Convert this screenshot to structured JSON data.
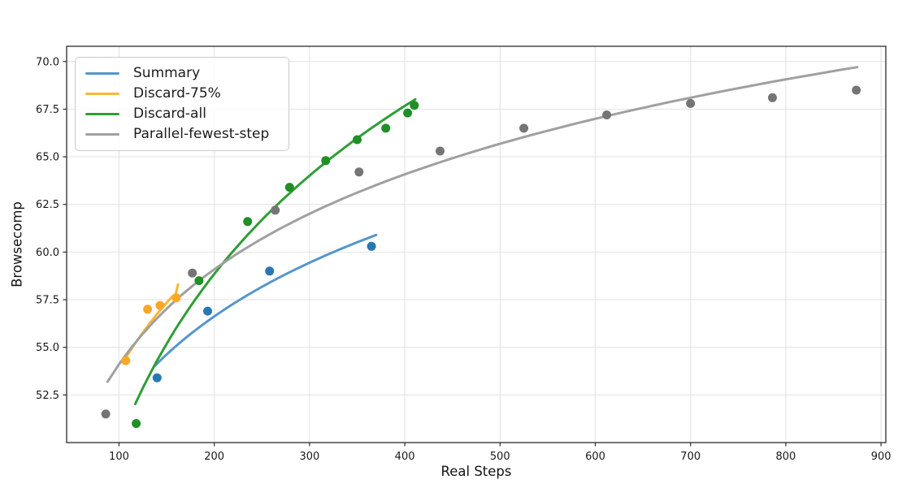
{
  "figure": {
    "background": "#ffffff",
    "grid_color": "#e2e2e2",
    "spine_color": "#2b2b2b",
    "tick_color": "#2b2b2b",
    "tick_label_color": "#1a1a1a"
  },
  "chart_data": {
    "type": "scatter",
    "title": "",
    "xlabel": "Real Steps",
    "ylabel": "Browsecomp",
    "xlim": [
      45,
      905
    ],
    "ylim": [
      50.0,
      70.8
    ],
    "x_ticks": [
      100,
      200,
      300,
      400,
      500,
      600,
      700,
      800,
      900
    ],
    "x_tick_labels": [
      "100",
      "200",
      "300",
      "400",
      "500",
      "600",
      "700",
      "800",
      "900"
    ],
    "y_ticks": [
      52.5,
      55.0,
      57.5,
      60.0,
      62.5,
      65.0,
      67.5,
      70.0
    ],
    "y_tick_labels": [
      "52.5",
      "55.0",
      "57.5",
      "60.0",
      "62.5",
      "65.0",
      "67.5",
      "70.0"
    ],
    "grid": true,
    "legend_position": "upper-left",
    "series": [
      {
        "name": "Summary",
        "line_color": "#5596cc",
        "marker_color": "#2878b5",
        "points": [
          [
            140,
            53.4
          ],
          [
            193,
            56.9
          ],
          [
            258,
            59.0
          ],
          [
            365,
            60.3
          ]
        ],
        "trend": {
          "type": "log",
          "a": 19.8,
          "b": 6.95,
          "x_start": 137,
          "x_end": 370
        }
      },
      {
        "name": "Discard-75%",
        "line_color": "#fcb632",
        "marker_color": "#f9a825",
        "points": [
          [
            107,
            54.3
          ],
          [
            130,
            57.0
          ],
          [
            143,
            57.2
          ],
          [
            160,
            57.6
          ]
        ],
        "trend": {
          "type": "log",
          "a": 14.3,
          "b": 8.59,
          "x_start": 104,
          "x_end": 156,
          "extra_points": [
            [
              158,
              57.5
            ],
            [
              162,
              58.3
            ]
          ]
        }
      },
      {
        "name": "Discard-all",
        "line_color": "#2f9e35",
        "marker_color": "#1f8f26",
        "points": [
          [
            118,
            51.0
          ],
          [
            184,
            58.5
          ],
          [
            235,
            61.6
          ],
          [
            279,
            63.4
          ],
          [
            317,
            64.8
          ],
          [
            350,
            65.9
          ],
          [
            380,
            66.5
          ],
          [
            403,
            67.3
          ],
          [
            410,
            67.7
          ]
        ],
        "trend": {
          "type": "log",
          "a": -8.6,
          "b": 12.73,
          "x_start": 117,
          "x_end": 411
        }
      },
      {
        "name": "Parallel-fewest-step",
        "line_color": "#a0a0a0",
        "marker_color": "#757575",
        "points": [
          [
            86,
            51.5
          ],
          [
            177,
            58.9
          ],
          [
            264,
            62.2
          ],
          [
            352,
            64.2
          ],
          [
            437,
            65.3
          ],
          [
            525,
            66.5
          ],
          [
            612,
            67.2
          ],
          [
            700,
            67.8
          ],
          [
            786,
            68.1
          ],
          [
            874,
            68.5
          ]
        ],
        "trend": {
          "type": "log",
          "a": 21.0,
          "b": 7.19,
          "x_start": 88,
          "x_end": 875
        }
      }
    ]
  }
}
